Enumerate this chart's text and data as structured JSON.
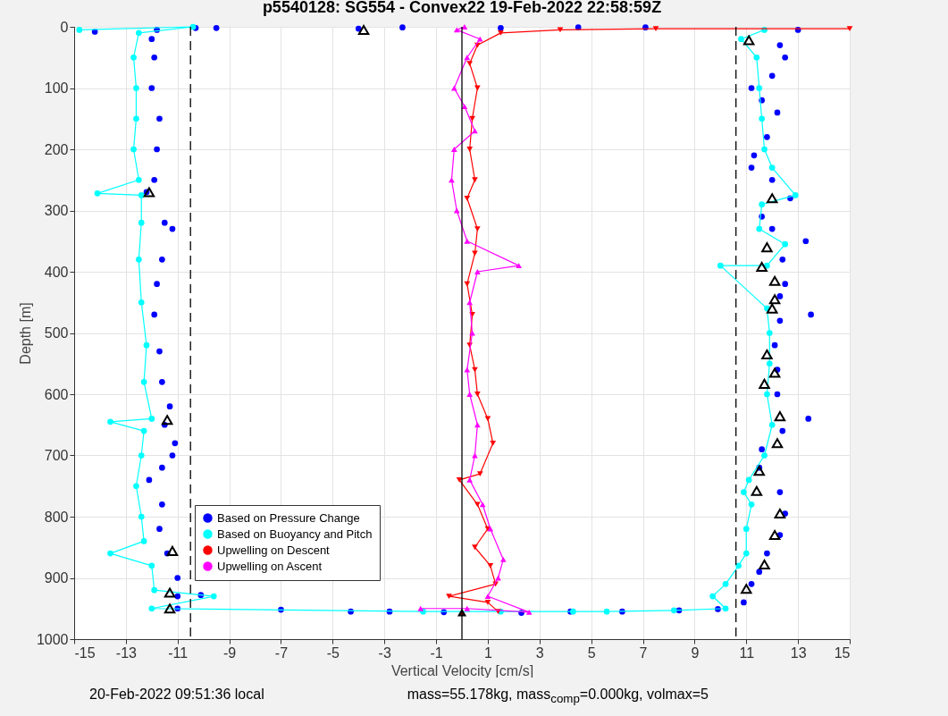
{
  "chart_data": {
    "type": "scatter",
    "title": "p5540128: SG554 - Convex22 19-Feb-2022 22:58:59Z",
    "xlabel": "Vertical Velocity [cm/s]",
    "ylabel": "Depth [m]",
    "xlim": [
      -15,
      15
    ],
    "xticks": [
      -15,
      -13,
      -11,
      -9,
      -7,
      -5,
      -3,
      -1,
      1,
      3,
      5,
      7,
      9,
      11,
      13,
      15
    ],
    "ylim": [
      1000,
      0
    ],
    "yticks": [
      0,
      100,
      200,
      300,
      400,
      500,
      600,
      700,
      800,
      900,
      1000
    ],
    "grid": true,
    "legend": "bottom left",
    "marker": "circle",
    "ref_lines": [
      {
        "axis": "x",
        "value": -10.5,
        "color": "#000000",
        "line_style": "dashed"
      },
      {
        "axis": "x",
        "value": 10.6,
        "color": "#000000",
        "line_style": "dashed"
      },
      {
        "axis": "x",
        "value": 0,
        "color": "#000000",
        "line_style": "solid"
      }
    ],
    "annotations": [
      "20-Feb-2022 09:51:36 local",
      "mass=55.178kg, mass$_{comp}$=0.000kg, volmax=5"
    ],
    "series": [
      {
        "name": "Based on Pressure Change",
        "color": "#0000ff",
        "x": [
          -14.2,
          -11.8,
          -12.0,
          -11.9,
          -12.0,
          -11.7,
          -11.8,
          -11.9,
          -12.2,
          -11.5,
          -11.2,
          -11.6,
          -11.8,
          -11.9,
          -11.7,
          -11.6,
          -11.3,
          -11.5,
          -11.1,
          -11.2,
          -11.6,
          -12.1,
          -11.6,
          -11.7,
          -11.4,
          -11.0,
          -11.0,
          -10.1,
          -11.0,
          -7.0,
          -4.3,
          -2.8,
          -0.7,
          2.3,
          4.2,
          6.2,
          8.4,
          9.9,
          10.9,
          11.2,
          11.5,
          11.8,
          12.3,
          12.5,
          12.3,
          11.5,
          11.6,
          12.4,
          13.4,
          12.2,
          12.2,
          12.1,
          12.3,
          13.5,
          12.3,
          12.5,
          12.4,
          13.3,
          12.0,
          11.6,
          12.7,
          12.0,
          11.2,
          11.3,
          11.8,
          12.2,
          11.6,
          11.2,
          12.0,
          12.5,
          12.3,
          13.0,
          7.1,
          4.5,
          1.5,
          -2.3,
          -4.0,
          -9.5,
          -10.3
        ],
        "values": [
          8,
          5,
          20,
          50,
          100,
          150,
          200,
          250,
          270,
          320,
          330,
          380,
          420,
          470,
          530,
          580,
          620,
          650,
          680,
          700,
          720,
          740,
          780,
          820,
          860,
          900,
          930,
          928,
          950,
          952,
          955,
          955,
          956,
          957,
          955,
          955,
          953,
          951,
          940,
          910,
          890,
          860,
          830,
          795,
          760,
          720,
          690,
          660,
          640,
          600,
          560,
          520,
          480,
          470,
          440,
          420,
          380,
          350,
          330,
          310,
          280,
          250,
          230,
          210,
          180,
          140,
          120,
          100,
          80,
          50,
          30,
          5,
          1,
          1,
          2,
          1,
          3,
          2,
          2
        ]
      },
      {
        "name": "Based on Buoyancy and Pitch",
        "type": "line",
        "color": "#00ffff",
        "x": [
          -14.8,
          -10.4,
          -12.5,
          -12.7,
          -12.6,
          -12.6,
          -12.7,
          -12.5,
          -14.1,
          -12.4,
          -12.4,
          -12.5,
          -12.4,
          -12.2,
          -12.3,
          -12.0,
          -13.6,
          -12.3,
          -12.4,
          -12.6,
          -12.4,
          -12.3,
          -13.6,
          -12.0,
          -11.9,
          -9.6,
          -12.0,
          -1.5,
          1.5,
          4.3,
          5.6,
          8.2,
          10.2,
          9.7,
          10.2,
          10.7,
          11.0,
          11.0,
          11.2,
          10.9,
          11.1,
          11.7,
          12.0,
          11.8,
          11.9,
          11.9,
          11.8,
          10.0,
          11.8,
          12.5,
          11.5,
          11.6,
          12.9,
          12.0,
          11.7,
          11.6,
          11.5,
          11.4,
          10.8,
          11.7
        ],
        "values": [
          5,
          0,
          10,
          50,
          100,
          150,
          200,
          250,
          272,
          275,
          320,
          380,
          450,
          520,
          580,
          640,
          645,
          660,
          700,
          750,
          800,
          840,
          860,
          880,
          920,
          930,
          950,
          955,
          955,
          955,
          955,
          953,
          950,
          930,
          910,
          880,
          860,
          820,
          780,
          760,
          740,
          700,
          650,
          600,
          550,
          500,
          460,
          390,
          390,
          355,
          330,
          290,
          275,
          230,
          200,
          150,
          100,
          50,
          20,
          5
        ]
      },
      {
        "name": "Upwelling on Descent",
        "type": "line",
        "marker": "triangle-down",
        "color": "#ff0000",
        "x": [
          15,
          7.5,
          3.8,
          1.5,
          0.6,
          0.3,
          0.6,
          0.4,
          0.3,
          0.5,
          0.2,
          0.6,
          0.5,
          0.2,
          0.4,
          0.3,
          0.5,
          0.6,
          1.0,
          1.2,
          0.7,
          -0.1,
          0.6,
          1.0,
          0.5,
          1.1,
          1.3,
          -0.5,
          1.0,
          1.4
        ],
        "values": [
          3,
          3,
          5,
          10,
          30,
          60,
          100,
          150,
          200,
          250,
          280,
          330,
          370,
          420,
          470,
          520,
          560,
          600,
          640,
          680,
          730,
          740,
          780,
          820,
          850,
          880,
          910,
          930,
          940,
          955
        ]
      },
      {
        "name": "Upwelling on Ascent",
        "type": "line",
        "marker": "triangle-up",
        "color": "#ff00ff",
        "x": [
          -1.6,
          0.2,
          2.6,
          1.0,
          1.4,
          1.6,
          1.1,
          0.8,
          0.3,
          0.5,
          0.6,
          0.3,
          0.2,
          0.4,
          0.3,
          0.6,
          2.2,
          0.2,
          -0.2,
          -0.4,
          -0.3,
          0.5,
          0.1,
          -0.3,
          0.2,
          0.7,
          -0.2,
          0.1
        ],
        "values": [
          950,
          950,
          956,
          930,
          900,
          870,
          820,
          780,
          740,
          700,
          650,
          600,
          560,
          500,
          450,
          400,
          390,
          350,
          300,
          250,
          200,
          170,
          130,
          100,
          50,
          20,
          5,
          0
        ]
      },
      {
        "type": "scatter",
        "marker": "triangle",
        "color": "#000000",
        "x": [
          -3.8,
          -12.1,
          -11.4,
          -11.2,
          -11.3,
          -11.3,
          11.1,
          12.0,
          11.8,
          11.6,
          12.1,
          12.1,
          12.0,
          11.8,
          12.1,
          11.7,
          12.3,
          12.2,
          11.5,
          11.4,
          12.3,
          12.1,
          11.7,
          11.0
        ],
        "values": [
          5,
          270,
          642,
          856,
          924,
          950,
          22,
          280,
          360,
          392,
          415,
          445,
          460,
          535,
          565,
          583,
          636,
          680,
          725,
          758,
          795,
          830,
          878,
          918
        ]
      },
      {
        "type": "scatter",
        "marker": "triangle-up",
        "color": "#ff0000",
        "x": [
          0
        ],
        "values": [
          957
        ]
      }
    ]
  }
}
